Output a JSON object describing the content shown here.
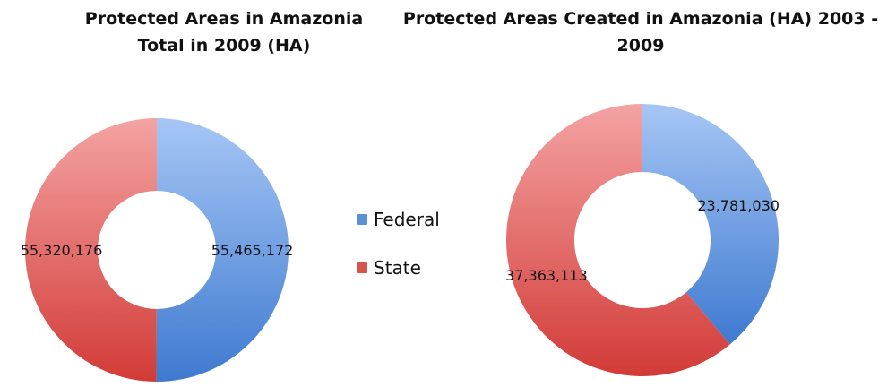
{
  "chart_data": [
    {
      "type": "pie",
      "title": "Protected Areas in Amazonia Total in 2009 (HA)",
      "categories": [
        "Federal",
        "State"
      ],
      "values": [
        55465172,
        55320176
      ],
      "data_labels": [
        "55,465,172",
        "55,320,176"
      ],
      "style": "donut"
    },
    {
      "type": "pie",
      "title": "Protected Areas Created in Amazonia (HA) 2003 - 2009",
      "categories": [
        "Federal",
        "State"
      ],
      "values": [
        23781030,
        37363113
      ],
      "data_labels": [
        "23,781,030",
        "37,363,113"
      ],
      "style": "donut"
    }
  ],
  "legend": {
    "placement": "center",
    "items": [
      {
        "label": "Federal",
        "color": "#5b8fd6"
      },
      {
        "label": "State",
        "color": "#d9534f"
      }
    ]
  },
  "colors": {
    "federal_light": "#a6c6f5",
    "federal_dark": "#3f7ad0",
    "state_light": "#f4a3a3",
    "state_dark": "#d23b37"
  }
}
